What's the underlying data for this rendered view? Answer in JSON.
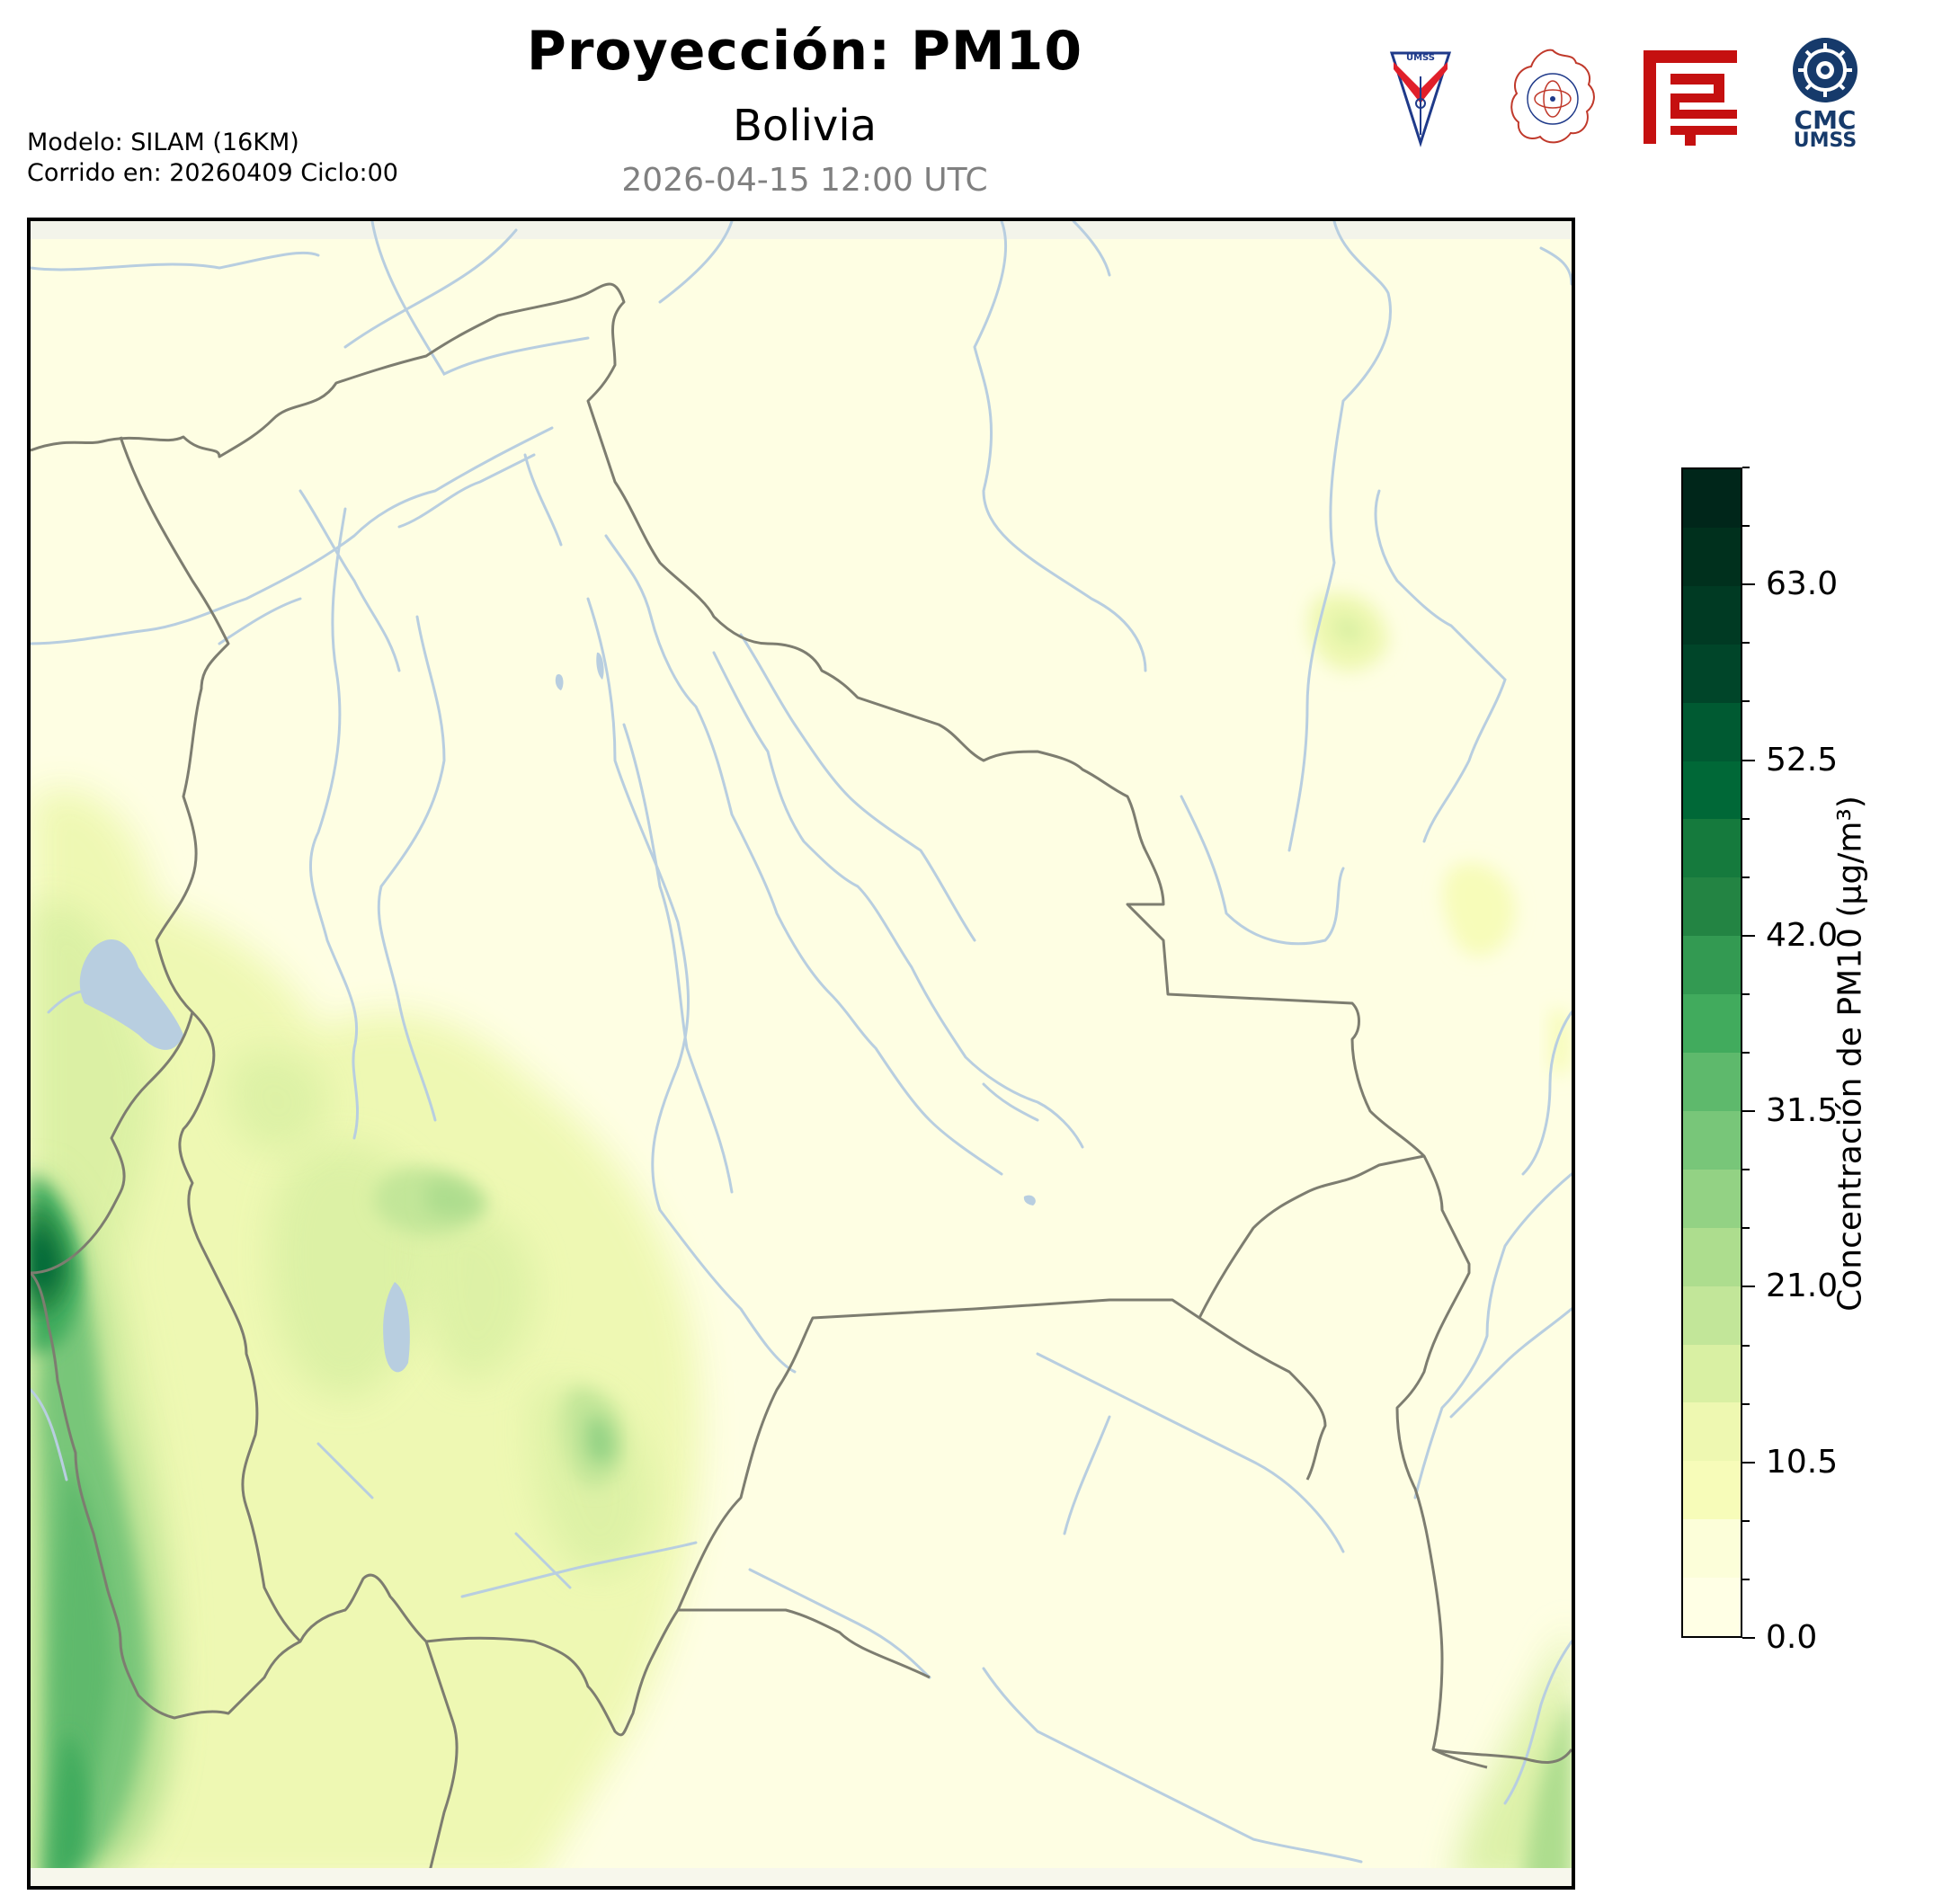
{
  "header": {
    "title": "Proyección: PM10",
    "subtitle": "Bolivia",
    "datetime": "2026-04-15 12:00 UTC"
  },
  "meta": {
    "model": "Modelo: SILAM (16KM)",
    "run": "Corrido en: 20260409 Ciclo:00"
  },
  "logos": {
    "umss": "UMSS",
    "cmc_line1": "CMC",
    "cmc_line2": "UMSS"
  },
  "colorbar": {
    "label": "Concentración de PM10 (μg/m³)",
    "min": 0,
    "max": 70,
    "ticks": [
      "0.0",
      "10.5",
      "21.0",
      "31.5",
      "42.0",
      "52.5",
      "63.0"
    ],
    "tick_values": [
      0,
      10.5,
      21,
      31.5,
      42,
      52.5,
      63
    ],
    "colors": [
      "#ffffe5",
      "#fcfed9",
      "#f7fcb9",
      "#eef8b1",
      "#d9f0a3",
      "#c2e699",
      "#addd8e",
      "#93d284",
      "#78c679",
      "#5eb96c",
      "#41ab5d",
      "#339a52",
      "#238443",
      "#157a3d",
      "#006837",
      "#005a32",
      "#004529",
      "#003a23",
      "#00301d",
      "#00261a"
    ]
  },
  "map": {
    "background": "#fefee3",
    "border_color": "#7d7d70",
    "river_color": "#b8cee0"
  }
}
